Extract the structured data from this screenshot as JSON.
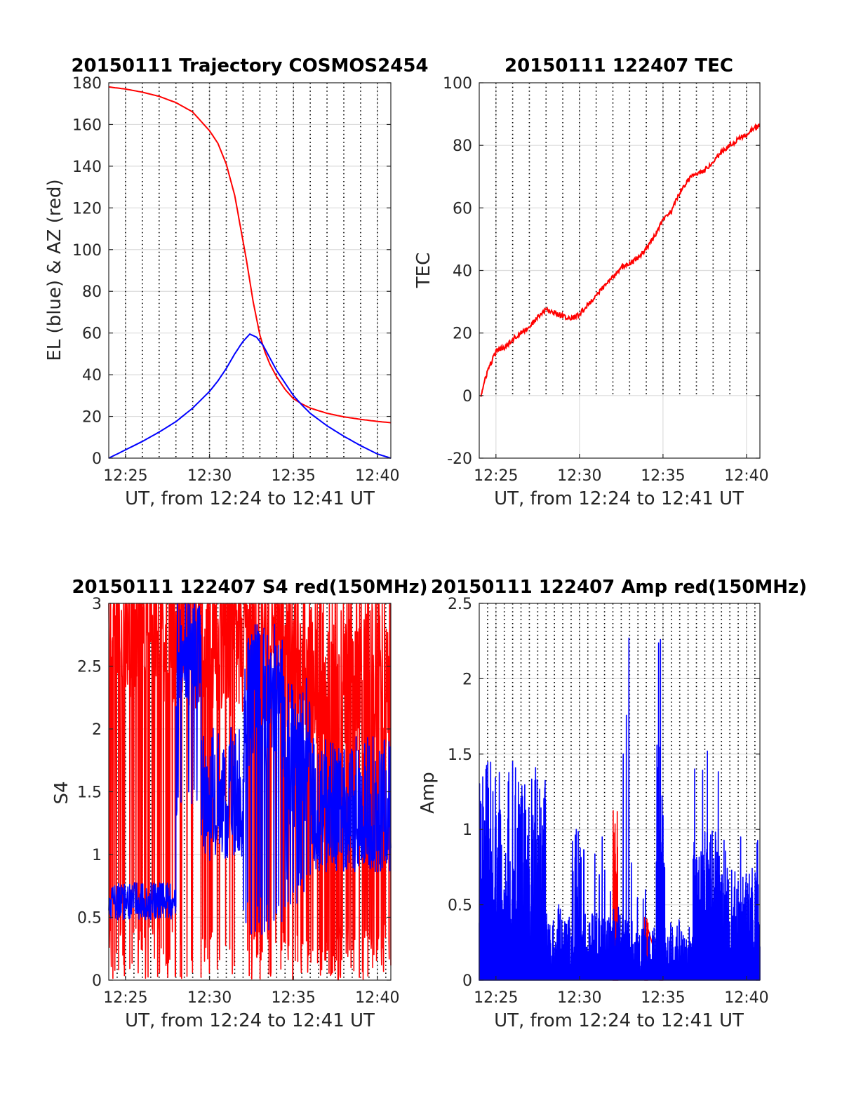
{
  "colors": {
    "red": "#ff0000",
    "blue": "#0000ff",
    "grid": "#dcdcdc",
    "dotted": "#000000",
    "axis": "#262626"
  },
  "chart_data": [
    {
      "id": "trajectory",
      "type": "line",
      "title": "20150111 Trajectory COSMOS2454",
      "xlabel": "UT, from 12:24 to 12:41 UT",
      "ylabel": "EL (blue) & AZ (red)",
      "xlim": [
        24.0,
        40.8
      ],
      "ylim": [
        0,
        180
      ],
      "yticks": [
        0,
        20,
        40,
        60,
        80,
        100,
        120,
        140,
        160,
        180
      ],
      "xticks": [
        25,
        30,
        35,
        40
      ],
      "xticklabels": [
        "12:25",
        "12:30",
        "12:35",
        "12:40"
      ],
      "grid": true,
      "dotted_minutes": [
        25.0,
        26.0,
        27.0,
        28.0,
        29.0,
        30.0,
        31.0,
        32.0,
        33.0,
        34.0,
        35.0,
        36.0,
        37.0,
        38.0,
        39.0,
        40.0
      ],
      "series": [
        {
          "color": "red",
          "x": [
            24.0,
            25.0,
            26.0,
            27.0,
            28.0,
            29.0,
            30.0,
            30.5,
            31.0,
            31.5,
            32.0,
            32.2,
            32.4,
            32.6,
            32.8,
            33.0,
            33.3,
            33.6,
            34.0,
            34.5,
            35.0,
            35.5,
            36.0,
            37.0,
            38.0,
            39.0,
            40.0,
            40.8
          ],
          "y": [
            178,
            177,
            175.5,
            173.5,
            170.5,
            166,
            157,
            151,
            141,
            126,
            104,
            95,
            85,
            75,
            67,
            59,
            51,
            45,
            39,
            33,
            28.5,
            26,
            24,
            21.5,
            19.8,
            18.6,
            17.6,
            17
          ]
        },
        {
          "color": "blue",
          "x": [
            24.0,
            25.0,
            26.0,
            27.0,
            28.0,
            29.0,
            30.0,
            30.5,
            31.0,
            31.5,
            32.0,
            32.4,
            32.8,
            33.2,
            33.6,
            34.0,
            34.5,
            35.0,
            35.5,
            36.0,
            37.0,
            38.0,
            39.0,
            40.0,
            40.8
          ],
          "y": [
            0,
            4,
            8,
            12.5,
            17.5,
            24,
            32,
            37,
            43,
            50,
            56,
            59.5,
            58,
            54,
            48,
            42,
            36,
            30,
            25.5,
            21.5,
            15.5,
            10.5,
            6,
            2,
            0
          ]
        }
      ]
    },
    {
      "id": "tec",
      "type": "line",
      "title": "20150111 122407 TEC",
      "xlabel": "UT, from 12:24 to 12:41 UT",
      "ylabel": "TEC",
      "xlim": [
        24.0,
        40.8
      ],
      "ylim": [
        -20,
        100
      ],
      "yticks": [
        -20,
        0,
        20,
        40,
        60,
        80,
        100
      ],
      "xticks": [
        25,
        30,
        35,
        40
      ],
      "xticklabels": [
        "12:25",
        "12:30",
        "12:35",
        "12:40"
      ],
      "grid": true,
      "dotted_minutes": [
        25.0,
        26.0,
        27.0,
        28.0,
        29.0,
        30.0,
        31.0,
        32.0,
        33.0,
        34.0,
        35.0,
        36.0,
        37.0,
        38.0,
        39.0,
        40.0
      ],
      "dotted_ylim": [
        0,
        100
      ],
      "series": [
        {
          "color": "red",
          "x": [
            24.1,
            24.5,
            25.0,
            25.5,
            26.0,
            26.5,
            27.0,
            27.5,
            28.0,
            28.5,
            29.0,
            29.5,
            30.0,
            30.5,
            31.0,
            31.5,
            32.0,
            32.5,
            33.0,
            33.5,
            34.0,
            34.5,
            35.0,
            35.5,
            36.0,
            36.5,
            37.0,
            37.5,
            38.0,
            38.5,
            39.0,
            39.5,
            40.0,
            40.5,
            40.8
          ],
          "y": [
            0,
            8,
            14,
            15.5,
            18,
            20,
            22,
            25,
            27.5,
            26.5,
            25.5,
            24.5,
            26,
            29,
            32,
            35,
            38,
            41,
            42,
            44,
            47,
            51,
            56,
            59,
            65,
            69,
            71,
            72,
            75,
            78,
            80,
            82,
            83.5,
            85.5,
            86.5
          ]
        }
      ]
    },
    {
      "id": "s4",
      "type": "line",
      "title": "20150111 122407 S4 red(150MHz)",
      "xlabel": "UT, from 12:24 to 12:41 UT",
      "ylabel": "S4",
      "xlim": [
        24.0,
        40.8
      ],
      "ylim": [
        0,
        3
      ],
      "yticks": [
        0,
        0.5,
        1,
        1.5,
        2,
        2.5,
        3
      ],
      "ytickformat": "plain",
      "xticks": [
        25,
        30,
        35,
        40
      ],
      "xticklabels": [
        "12:25",
        "12:30",
        "12:35",
        "12:40"
      ],
      "grid": true,
      "dotted_minutes": [
        24.5,
        25.0,
        25.5,
        26.0,
        26.5,
        27.0,
        27.5,
        28.0,
        28.5,
        29.0,
        29.5,
        30.0,
        30.5,
        31.0,
        31.5,
        32.0,
        32.5,
        33.0,
        33.5,
        34.0,
        34.5,
        35.0,
        35.5,
        36.0,
        36.5,
        37.0,
        37.5,
        38.0,
        38.5,
        39.0,
        39.5,
        40.0,
        40.5
      ],
      "series": [
        {
          "color": "red",
          "style": "noisy",
          "segments": [
            {
              "x": [
                24.0,
                28.3
              ],
              "low": 0.0,
              "high": 3.0,
              "base": 2.9,
              "spike_prob": 0.25
            },
            {
              "x": [
                28.3,
                32.5
              ],
              "low": 0.0,
              "high": 3.0,
              "base": 2.8,
              "spike_prob": 0.15
            },
            {
              "x": [
                32.5,
                36.0
              ],
              "low": 0.0,
              "high": 3.0,
              "base": 2.7,
              "spike_prob": 0.25
            },
            {
              "x": [
                36.0,
                40.8
              ],
              "low": 0.0,
              "high": 3.0,
              "base": 2.5,
              "spike_prob": 0.3
            }
          ]
        },
        {
          "color": "blue",
          "style": "noisy",
          "segments": [
            {
              "x": [
                24.0,
                28.0
              ],
              "low": 0.5,
              "high": 0.8,
              "base": 0.63,
              "spike_prob": 0.0
            },
            {
              "x": [
                28.0,
                29.5
              ],
              "low": 1.3,
              "high": 3.0,
              "base": 2.6,
              "spike_prob": 0.1
            },
            {
              "x": [
                29.5,
                32.0
              ],
              "low": 0.9,
              "high": 3.0,
              "base": 1.5,
              "spike_prob": 0.15
            },
            {
              "x": [
                32.0,
                34.5
              ],
              "low": 0.3,
              "high": 3.0,
              "base": 2.2,
              "spike_prob": 0.2
            },
            {
              "x": [
                34.5,
                36.0
              ],
              "low": 0.5,
              "high": 3.0,
              "base": 1.8,
              "spike_prob": 0.2
            },
            {
              "x": [
                36.0,
                40.8
              ],
              "low": 0.9,
              "high": 3.0,
              "base": 1.4,
              "spike_prob": 0.15
            }
          ]
        }
      ]
    },
    {
      "id": "amp",
      "type": "line",
      "title": "20150111 122407 Amp red(150MHz)",
      "xlabel": "UT, from 12:24 to 12:41 UT",
      "ylabel": "Amp",
      "xlim": [
        24.0,
        40.8
      ],
      "ylim": [
        0,
        2.5
      ],
      "yticks": [
        0,
        0.5,
        1,
        1.5,
        2,
        2.5
      ],
      "xticks": [
        25,
        30,
        35,
        40
      ],
      "xticklabels": [
        "12:25",
        "12:30",
        "12:35",
        "12:40"
      ],
      "grid": true,
      "dotted_minutes": [
        24.5,
        25.0,
        25.5,
        26.0,
        26.5,
        27.0,
        27.5,
        28.0,
        28.5,
        29.0,
        29.5,
        30.0,
        30.5,
        31.0,
        31.5,
        32.0,
        32.5,
        33.0,
        33.5,
        34.0,
        34.5,
        35.0,
        35.5,
        36.0,
        36.5,
        37.0,
        37.5,
        38.0,
        38.5,
        39.0,
        39.5,
        40.0,
        40.5
      ],
      "series": [
        {
          "color": "red",
          "style": "bars",
          "segments": [
            {
              "x": [
                32.0,
                32.3
              ],
              "low": 0.0,
              "high": 1.15
            },
            {
              "x": [
                34.8,
                35.0
              ],
              "low": 0.0,
              "high": 0.15
            },
            {
              "x": [
                33.9,
                34.1
              ],
              "low": 0.0,
              "high": 0.5
            }
          ]
        },
        {
          "color": "blue",
          "style": "bars",
          "segments": [
            {
              "x": [
                24.0,
                28.0
              ],
              "low": 0.0,
              "high": 1.3,
              "peak": 1.45
            },
            {
              "x": [
                28.0,
                29.5
              ],
              "low": 0.0,
              "high": 0.4,
              "peak": 0.5
            },
            {
              "x": [
                29.5,
                30.1
              ],
              "low": 0.0,
              "high": 0.9,
              "peak": 1.0
            },
            {
              "x": [
                30.1,
                32.6
              ],
              "low": 0.0,
              "high": 0.45,
              "peak": 0.95
            },
            {
              "x": [
                32.6,
                33.3
              ],
              "low": 0.0,
              "high": 0.4,
              "peak": 2.27
            },
            {
              "x": [
                33.3,
                34.6
              ],
              "low": 0.0,
              "high": 0.35,
              "peak": 0.6
            },
            {
              "x": [
                34.6,
                35.1
              ],
              "low": 0.0,
              "high": 1.7,
              "peak": 2.26
            },
            {
              "x": [
                35.1,
                36.8
              ],
              "low": 0.0,
              "high": 0.35,
              "peak": 0.4
            },
            {
              "x": [
                36.8,
                38.5
              ],
              "low": 0.0,
              "high": 1.0,
              "peak": 1.52
            },
            {
              "x": [
                38.5,
                40.8
              ],
              "low": 0.0,
              "high": 0.75,
              "peak": 0.95
            }
          ]
        }
      ]
    }
  ]
}
